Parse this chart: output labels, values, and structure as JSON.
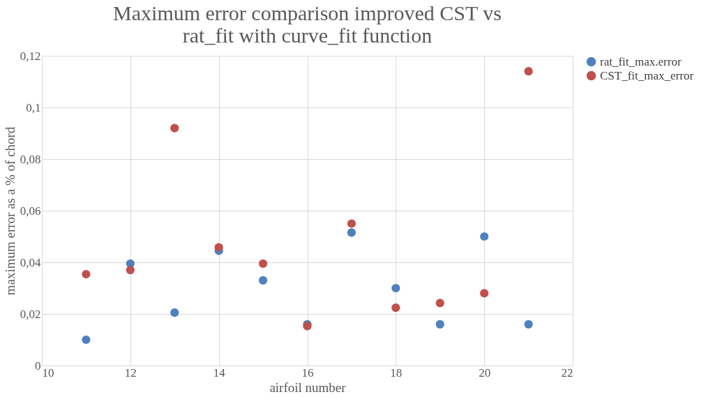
{
  "chart_data": {
    "type": "scatter",
    "title": "Maximum  error comparison improved CST vs rat_fit with curve_fit function",
    "xlabel": "airfoil number",
    "ylabel": "maximum error as a % of chord",
    "x": [
      11,
      12,
      13,
      14,
      15,
      16,
      17,
      18,
      19,
      20,
      21
    ],
    "series": [
      {
        "name": "rat_fit_max.error",
        "color": "#4f81bd",
        "values": [
          0.01,
          0.0395,
          0.0205,
          0.0445,
          0.033,
          0.016,
          0.0515,
          0.03,
          0.016,
          0.05,
          0.016
        ]
      },
      {
        "name": "CST_fit_max_error",
        "color": "#c0504d",
        "values": [
          0.0354,
          0.037,
          0.092,
          0.0458,
          0.0395,
          0.0153,
          0.055,
          0.0224,
          0.0242,
          0.028,
          0.114
        ]
      }
    ],
    "xlim": [
      10,
      22
    ],
    "xticks": [
      10,
      12,
      14,
      16,
      18,
      20,
      22
    ],
    "ylim": [
      0,
      0.12
    ],
    "yticks": [
      0,
      {
        "value": 0.02,
        "label": "0,02"
      },
      {
        "value": 0.04,
        "label": "0,04"
      },
      {
        "value": 0.06,
        "label": "0,06"
      },
      {
        "value": 0.08,
        "label": "0,08"
      },
      {
        "value": 0.1,
        "label": "0,1"
      },
      {
        "value": 0.12,
        "label": "0,12"
      }
    ],
    "grid": true,
    "legend": "right",
    "marker": "circle"
  }
}
